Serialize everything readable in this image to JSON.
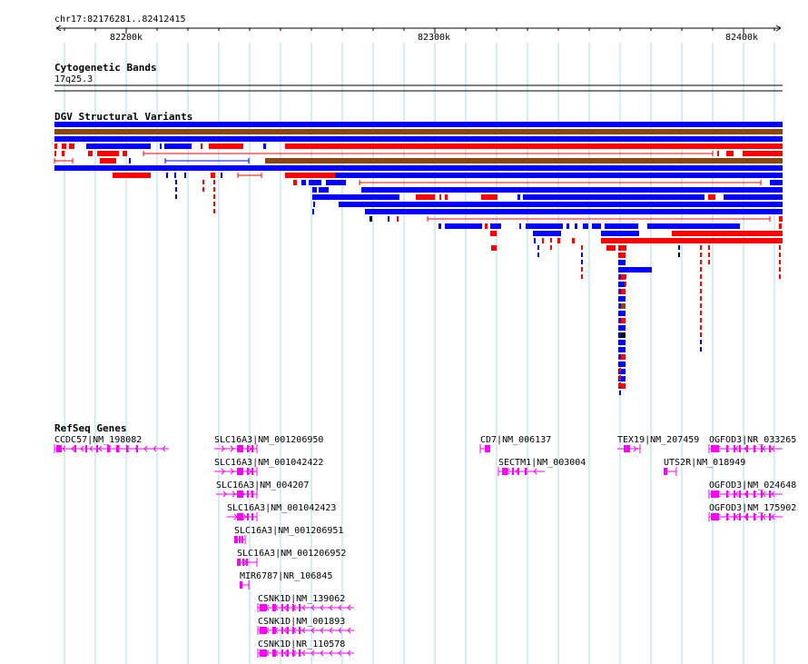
{
  "region": {
    "label": "chr17:82176281..82412415"
  },
  "ruler": {
    "ticks": [
      "82200k",
      "82300k",
      "82400k"
    ]
  },
  "tracks": {
    "cytoband": {
      "title": "Cytogenetic Bands",
      "band": "17q25.3"
    },
    "dgv": {
      "title": "DGV Structural Variants"
    },
    "refseq": {
      "title": "RefSeq Genes"
    }
  },
  "colors": {
    "gain": "#0000ff",
    "loss": "#ff0000",
    "complex": "#8b4513",
    "inversion": "#000000",
    "gene": "#ff00ff",
    "grid": "#add8e6"
  },
  "genes": [
    {
      "label": "CCDC57|NM_198082"
    },
    {
      "label": "SLC16A3|NM_001206950"
    },
    {
      "label": "SLC16A3|NM_001042422"
    },
    {
      "label": "SLC16A3|NM_004207"
    },
    {
      "label": "SLC16A3|NM_001042423"
    },
    {
      "label": "SLC16A3|NM_001206951"
    },
    {
      "label": "SLC16A3|NM_001206952"
    },
    {
      "label": "MIR6787|NR_106845"
    },
    {
      "label": "CSNK1D|NM_139062"
    },
    {
      "label": "CSNK1D|NM_001893"
    },
    {
      "label": "CSNK1D|NR_110578"
    },
    {
      "label": "CD7|NM_006137"
    },
    {
      "label": "SECTM1|NM_003004"
    },
    {
      "label": "TEX19|NM_207459"
    },
    {
      "label": "UTS2R|NM_018949"
    },
    {
      "label": "OGFOD3|NR_033265"
    },
    {
      "label": "OGFOD3|NM_024648"
    },
    {
      "label": "OGFOD3|NM_175902"
    }
  ]
}
